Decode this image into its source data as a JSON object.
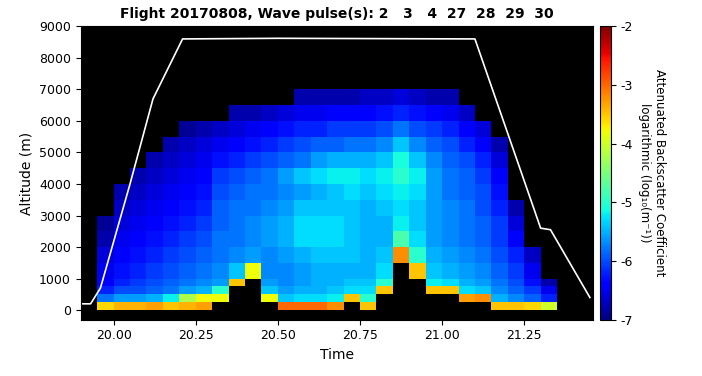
{
  "chart_data": {
    "type": "heatmap",
    "title": "Flight 20170808, Wave pulse(s): 2   3   4  27  28  29  30",
    "x_label": "Time",
    "y_label": "Altitude (m)",
    "xlim": [
      19.9,
      21.46
    ],
    "xticks": [
      {
        "value": 20.0,
        "label": "20.00"
      },
      {
        "value": 20.25,
        "label": "20.25"
      },
      {
        "value": 20.5,
        "label": "20.50"
      },
      {
        "value": 20.75,
        "label": "20.75"
      },
      {
        "value": 21.0,
        "label": "21.00"
      },
      {
        "value": 21.25,
        "label": "21.25"
      }
    ],
    "ylim": [
      -300,
      9000
    ],
    "yticks": [
      0,
      1000,
      2000,
      3000,
      4000,
      5000,
      6000,
      7000,
      8000,
      9000
    ],
    "x_edges": [
      19.95,
      20.0,
      20.05,
      20.1,
      20.15,
      20.2,
      20.25,
      20.3,
      20.35,
      20.4,
      20.45,
      20.5,
      20.55,
      20.6,
      20.65,
      20.7,
      20.75,
      20.8,
      20.85,
      20.9,
      20.95,
      21.0,
      21.05,
      21.1,
      21.15,
      21.2,
      21.25,
      21.3,
      21.35,
      21.4
    ],
    "y_edges": [
      -250,
      0,
      250,
      500,
      750,
      1000,
      1500,
      2000,
      2500,
      3000,
      3500,
      4000,
      4500,
      5000,
      5500,
      6000,
      6500,
      7000
    ],
    "cells_by_time": [
      [
        null,
        -3.6,
        -5.8,
        -6.2,
        -6.4,
        -6.5,
        -6.6,
        -6.8,
        -6.9,
        null,
        null,
        null,
        null,
        null,
        null,
        null,
        null
      ],
      [
        null,
        -3.4,
        -5.6,
        -6.0,
        -6.2,
        -6.3,
        -6.4,
        -6.5,
        -6.6,
        -6.7,
        -6.8,
        null,
        null,
        null,
        null,
        null,
        null
      ],
      [
        null,
        -3.4,
        -5.6,
        -6.0,
        -6.1,
        -6.2,
        -6.3,
        -6.4,
        -6.5,
        -6.6,
        -6.7,
        -6.8,
        null,
        null,
        null,
        null,
        null
      ],
      [
        null,
        -3.3,
        -5.5,
        -5.9,
        -6.0,
        -6.1,
        -6.2,
        -6.3,
        -6.4,
        -6.5,
        -6.6,
        -6.7,
        -6.8,
        null,
        null,
        null,
        null
      ],
      [
        null,
        -3.5,
        -5.2,
        -5.8,
        -5.9,
        -6.0,
        -6.1,
        -6.2,
        -6.3,
        -6.4,
        -6.5,
        -6.6,
        -6.7,
        -6.8,
        null,
        null,
        null
      ],
      [
        null,
        -3.4,
        -4.2,
        -5.6,
        -5.8,
        -5.9,
        -6.0,
        -6.1,
        -6.2,
        -6.3,
        -6.4,
        -6.5,
        -6.6,
        -6.7,
        -6.9,
        null,
        null
      ],
      [
        null,
        -3.3,
        -3.8,
        -5.5,
        -5.7,
        -5.8,
        -5.9,
        -6.0,
        -6.1,
        -6.2,
        -6.3,
        -6.4,
        -6.5,
        -6.6,
        -6.8,
        null,
        null
      ],
      [
        null,
        null,
        -3.8,
        -5.0,
        -5.6,
        -5.7,
        -5.8,
        -5.8,
        -5.9,
        -5.9,
        -6.0,
        -6.1,
        -6.3,
        -6.5,
        -6.7,
        null,
        null
      ],
      [
        null,
        null,
        null,
        null,
        -3.5,
        -5.4,
        -5.7,
        -5.8,
        -5.8,
        -5.8,
        -5.9,
        -6.0,
        -6.2,
        -6.4,
        -6.6,
        -6.8,
        null
      ],
      [
        null,
        null,
        null,
        null,
        null,
        -3.8,
        -5.6,
        -5.7,
        -5.7,
        -5.8,
        -5.8,
        -5.9,
        -6.1,
        -6.3,
        -6.5,
        -6.8,
        null
      ],
      [
        null,
        null,
        -3.8,
        -5.4,
        -5.6,
        -5.7,
        -5.7,
        -5.6,
        -5.6,
        -5.7,
        -5.8,
        -5.8,
        -6.0,
        -6.2,
        -6.4,
        -6.7,
        null
      ],
      [
        null,
        -3.0,
        -5.4,
        -5.6,
        -5.7,
        -5.7,
        -5.6,
        -5.5,
        -5.5,
        -5.6,
        -5.7,
        -5.6,
        -5.9,
        -6.1,
        -6.3,
        -6.6,
        null
      ],
      [
        null,
        -3.0,
        -5.3,
        -5.5,
        -5.6,
        -5.6,
        -5.5,
        -5.3,
        -5.3,
        -5.4,
        -5.6,
        -5.4,
        -5.8,
        -6.0,
        -6.2,
        -6.5,
        -6.8
      ],
      [
        null,
        -3.0,
        -5.3,
        -5.5,
        -5.5,
        -5.5,
        -5.4,
        -5.3,
        -5.3,
        -5.4,
        -5.5,
        -5.3,
        -5.6,
        -5.9,
        -6.2,
        -6.5,
        -6.8
      ],
      [
        null,
        -3.2,
        -5.2,
        -5.4,
        -5.5,
        -5.5,
        -5.4,
        -5.3,
        -5.3,
        -5.4,
        -5.4,
        -5.2,
        -5.5,
        -5.9,
        -6.1,
        -6.4,
        -6.8
      ],
      [
        null,
        null,
        -3.5,
        -5.3,
        -5.4,
        -5.5,
        -5.4,
        -5.4,
        -5.4,
        -5.4,
        -5.3,
        -5.2,
        -5.5,
        -5.8,
        -6.1,
        -6.4,
        -6.8
      ],
      [
        null,
        -3.5,
        -5.0,
        -5.3,
        -5.4,
        -5.5,
        -5.5,
        -5.5,
        -5.5,
        -5.5,
        -5.4,
        -5.3,
        -5.5,
        -5.8,
        -6.1,
        -6.4,
        -6.7
      ],
      [
        null,
        null,
        null,
        -3.5,
        -5.0,
        -5.3,
        -5.4,
        -5.5,
        -5.5,
        -5.4,
        -5.3,
        -5.2,
        -5.4,
        -5.7,
        -6.0,
        -6.3,
        -6.7
      ],
      [
        null,
        null,
        null,
        null,
        null,
        null,
        -3.2,
        -4.8,
        -5.2,
        -5.3,
        -5.2,
        -5.0,
        -5.1,
        -5.4,
        -5.8,
        -6.2,
        -6.6
      ],
      [
        null,
        null,
        null,
        null,
        null,
        -3.5,
        -5.0,
        -5.3,
        -5.4,
        -5.4,
        -5.3,
        -5.2,
        -5.4,
        -5.7,
        -6.0,
        -6.3,
        -6.7
      ],
      [
        null,
        null,
        null,
        -3.5,
        -5.2,
        -5.4,
        -5.5,
        -5.6,
        -5.6,
        -5.6,
        -5.6,
        -5.6,
        -5.7,
        -5.9,
        -6.1,
        -6.4,
        -6.8
      ],
      [
        null,
        null,
        null,
        -3.5,
        -5.3,
        -5.5,
        -5.6,
        -5.7,
        -5.7,
        -5.7,
        -5.8,
        -5.8,
        -5.9,
        -6.0,
        -6.2,
        -6.5,
        -6.8
      ],
      [
        null,
        null,
        -3.3,
        -5.3,
        -5.5,
        -5.6,
        -5.7,
        -5.8,
        -5.8,
        -5.8,
        -5.9,
        -5.9,
        -6.0,
        -6.2,
        -6.4,
        -6.7,
        null
      ],
      [
        null,
        null,
        -3.2,
        -5.4,
        -5.6,
        -5.7,
        -5.8,
        -5.9,
        -5.9,
        -6.0,
        -6.0,
        -6.1,
        -6.2,
        -6.4,
        -6.6,
        null,
        null
      ],
      [
        null,
        -3.5,
        -5.5,
        -5.7,
        -5.8,
        -5.9,
        -6.0,
        -6.1,
        -6.1,
        -6.2,
        -6.3,
        -6.4,
        -6.6,
        -6.8,
        null,
        null,
        null
      ],
      [
        null,
        -3.5,
        -5.7,
        -5.9,
        -6.0,
        -6.1,
        -6.2,
        -6.4,
        -6.6,
        -6.8,
        null,
        null,
        null,
        null,
        null,
        null,
        null
      ],
      [
        null,
        -3.6,
        -5.9,
        -6.1,
        -6.3,
        -6.5,
        -6.7,
        null,
        null,
        null,
        null,
        null,
        null,
        null,
        null,
        null,
        null
      ],
      [
        null,
        -4.0,
        -6.2,
        -6.5,
        -6.8,
        null,
        null,
        null,
        null,
        null,
        null,
        null,
        null,
        null,
        null,
        null,
        null
      ],
      [
        null,
        null,
        null,
        null,
        null,
        null,
        null,
        null,
        null,
        null,
        null,
        null,
        null,
        null,
        null,
        null,
        null
      ]
    ],
    "colorbar": {
      "label": "Attenuated Backscatter Coefficient\nlogarithmic (log₁₀(m⁻¹))",
      "lim": [
        -7,
        -2
      ],
      "ticks": [
        -7,
        -6,
        -5,
        -4,
        -3,
        -2
      ]
    },
    "line": {
      "x": [
        19.9,
        19.93,
        19.96,
        20.05,
        20.12,
        20.21,
        20.5,
        21.1,
        21.3,
        21.33,
        21.45
      ],
      "values": [
        200,
        200,
        700,
        4000,
        6700,
        8600,
        8620,
        8600,
        2600,
        2550,
        400
      ],
      "color": "#ffffff"
    }
  }
}
